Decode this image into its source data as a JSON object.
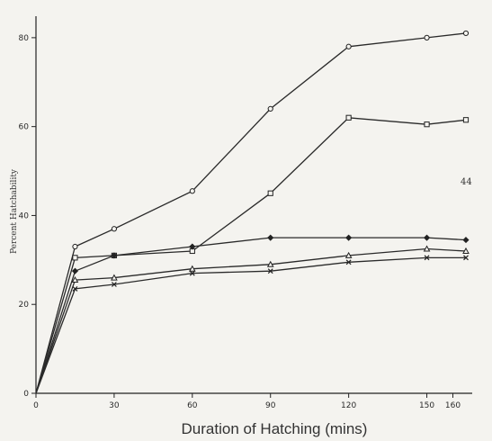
{
  "chart_data": {
    "type": "line",
    "xlabel": "Duration of Hatching (mins)",
    "ylabel": "Percent Hatchability",
    "xlim": [
      0,
      165
    ],
    "ylim": [
      0,
      82
    ],
    "x_ticks": [
      0,
      30,
      60,
      90,
      120,
      150,
      160
    ],
    "x_tick_labels": [
      "0",
      "30",
      "60",
      "90",
      "120",
      "150",
      "160"
    ],
    "y_ticks": [
      0,
      20,
      40,
      60,
      80
    ],
    "y_tick_labels": [
      "0",
      "20",
      "40",
      "60",
      "80"
    ],
    "annotation": "44",
    "series": [
      {
        "marker": "circle",
        "x": [
          0,
          15,
          30,
          60,
          90,
          120,
          150,
          165
        ],
        "y": [
          0,
          33,
          37,
          45.5,
          64,
          78,
          80,
          81
        ]
      },
      {
        "marker": "square",
        "x": [
          0,
          15,
          30,
          60,
          90,
          120,
          150,
          165
        ],
        "y": [
          0,
          30.5,
          31,
          32,
          45,
          62,
          60.5,
          61.5
        ]
      },
      {
        "marker": "diamond",
        "x": [
          0,
          15,
          30,
          60,
          90,
          120,
          150,
          165
        ],
        "y": [
          0,
          27.5,
          31,
          33,
          35,
          35,
          35,
          34.5
        ]
      },
      {
        "marker": "triangle",
        "x": [
          0,
          15,
          30,
          60,
          90,
          120,
          150,
          165
        ],
        "y": [
          0,
          25.5,
          26,
          28,
          29,
          31,
          32.5,
          32
        ]
      },
      {
        "marker": "cross",
        "x": [
          0,
          15,
          30,
          60,
          90,
          120,
          150,
          165
        ],
        "y": [
          0,
          23.5,
          24.5,
          27,
          27.5,
          29.5,
          30.5,
          30.5
        ]
      }
    ]
  }
}
